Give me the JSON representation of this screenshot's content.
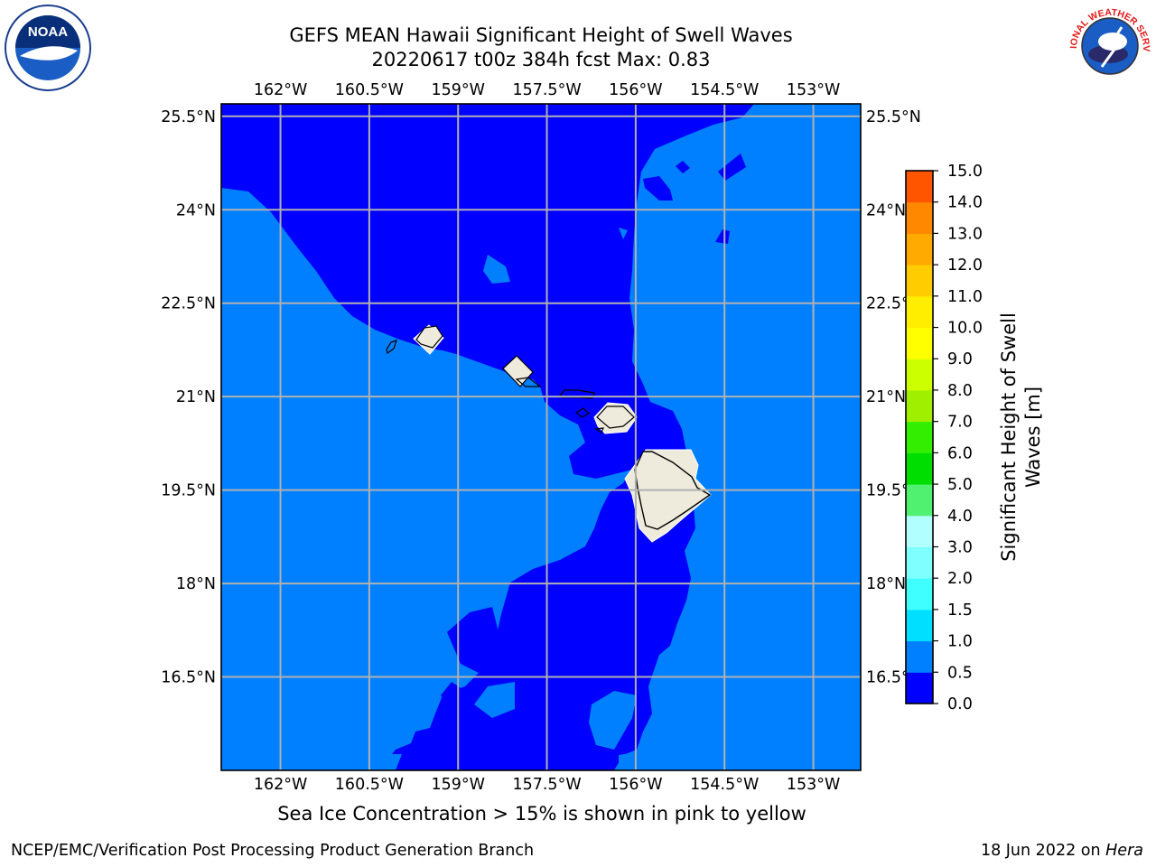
{
  "title": {
    "line1": "GEFS MEAN Hawaii Significant Height of Swell Waves",
    "line2": "20220617 t00z 384h fcst   Max: 0.83"
  },
  "map": {
    "lon_labels": [
      "162°W",
      "160.5°W",
      "159°W",
      "157.5°W",
      "156°W",
      "154.5°W",
      "153°W"
    ],
    "lat_labels": [
      "25.5°N",
      "24°N",
      "22.5°N",
      "21°N",
      "19.5°N",
      "18°N",
      "16.5°N"
    ],
    "lon_range": [
      -163,
      -152.2
    ],
    "lat_range": [
      15.0,
      25.7
    ],
    "colors": {
      "shallow": "#0080ff",
      "low": "#0000ff",
      "land": "#eeebdc",
      "grid": "#b0b0b0"
    }
  },
  "colorbar": {
    "label_line1": "Significant Height of Swell",
    "label_line2": "Waves [m]",
    "ticks": [
      "0.0",
      "0.5",
      "1.0",
      "1.5",
      "2.0",
      "3.0",
      "4.0",
      "5.0",
      "6.0",
      "7.0",
      "8.0",
      "9.0",
      "10.0",
      "11.0",
      "12.0",
      "13.0",
      "14.0",
      "15.0"
    ],
    "colors": [
      "#0000ff",
      "#0080ff",
      "#00dfff",
      "#40ffff",
      "#7fffff",
      "#b2ffff",
      "#50f070",
      "#00dd00",
      "#33ee00",
      "#a0ee00",
      "#ccff00",
      "#ffff00",
      "#ffee00",
      "#ffcc00",
      "#ffaa00",
      "#ff8800",
      "#ff5500",
      "#ff2200",
      "#ff0000"
    ]
  },
  "note": "Sea Ice Concentration > 15% is shown in pink to yellow",
  "footer": {
    "left": "NCEP/EMC/Verification Post Processing Product Generation Branch",
    "right_prefix": "18 Jun 2022 on ",
    "right_host": "Hera"
  },
  "logos": {
    "noaa_text": "NOAA",
    "nws_text": "NATIONAL WEATHER SERVICE"
  }
}
